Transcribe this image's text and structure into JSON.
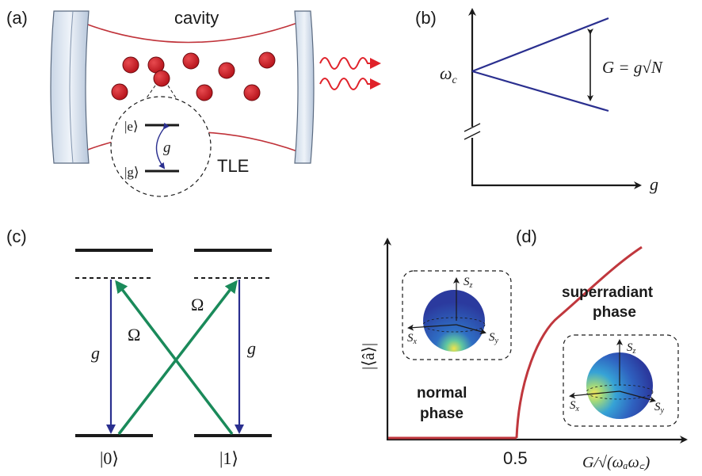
{
  "panels": {
    "a": {
      "tag": "(a)",
      "cavity_label": "cavity",
      "tle_label": "TLE",
      "excited_state": "|e⟩",
      "ground_state": "|g⟩",
      "coupling": "g"
    },
    "b": {
      "tag": "(b)",
      "y_label": "ω",
      "y_label_sub": "c",
      "x_label": "g",
      "splitting_label": "G = g√N"
    },
    "c": {
      "tag": "(c)",
      "coupling_left": "g",
      "coupling_right": "g",
      "drive_left": "Ω",
      "drive_right": "Ω",
      "state_0": "|0⟩",
      "state_1": "|1⟩"
    },
    "d": {
      "tag": "(d)",
      "y_label": "|⟨â⟩|",
      "x_label": "G/√(ωₐω꜀)",
      "x_tick": "0.5",
      "normal_line1": "normal",
      "normal_line2": "phase",
      "super_line1": "superradiant",
      "super_line2": "phase",
      "bloch_axes": {
        "sz": "S",
        "sz_sub": "z",
        "sx": "S",
        "sx_sub": "x",
        "sy": "S",
        "sy_sub": "y"
      }
    }
  },
  "colors": {
    "atom": "#c8161e",
    "photon": "#e0222a",
    "cavity_line": "#c0333a",
    "navy": "#2a2f8f",
    "green": "#1a8a5a",
    "phase_curve": "#c0373d",
    "sphere_blue": "#2b3a9e"
  }
}
